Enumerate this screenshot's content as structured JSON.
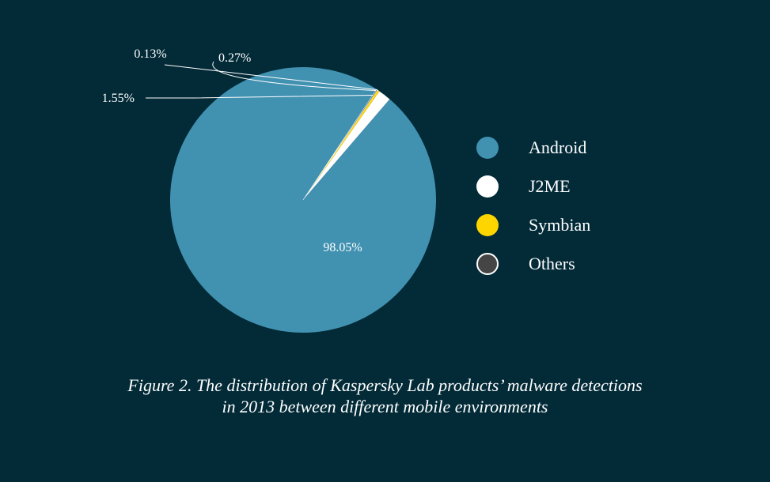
{
  "chart_data": {
    "type": "pie",
    "slices": [
      {
        "name": "Android",
        "value": 98.05,
        "label": "98.05%",
        "color": "#4191b1"
      },
      {
        "name": "J2ME",
        "value": 1.55,
        "label": "1.55%",
        "color": "#ffffff"
      },
      {
        "name": "Symbian",
        "value": 0.27,
        "label": "0.27%",
        "color": "#ffd500"
      },
      {
        "name": "Others",
        "value": 0.13,
        "label": "0.13%",
        "color": "#454545"
      }
    ],
    "legend": {
      "placement": "right",
      "items": [
        "Android",
        "J2ME",
        "Symbian",
        "Others"
      ]
    },
    "title": ""
  },
  "caption": {
    "line1": "Figure 2. The distribution of Kaspersky Lab products’ malware detections",
    "line2": "in 2013 between different mobile environments"
  },
  "colors": {
    "background": "#022a37",
    "android": "#4191b1",
    "j2me": "#ffffff",
    "symbian": "#ffd500",
    "others": "#454545"
  }
}
